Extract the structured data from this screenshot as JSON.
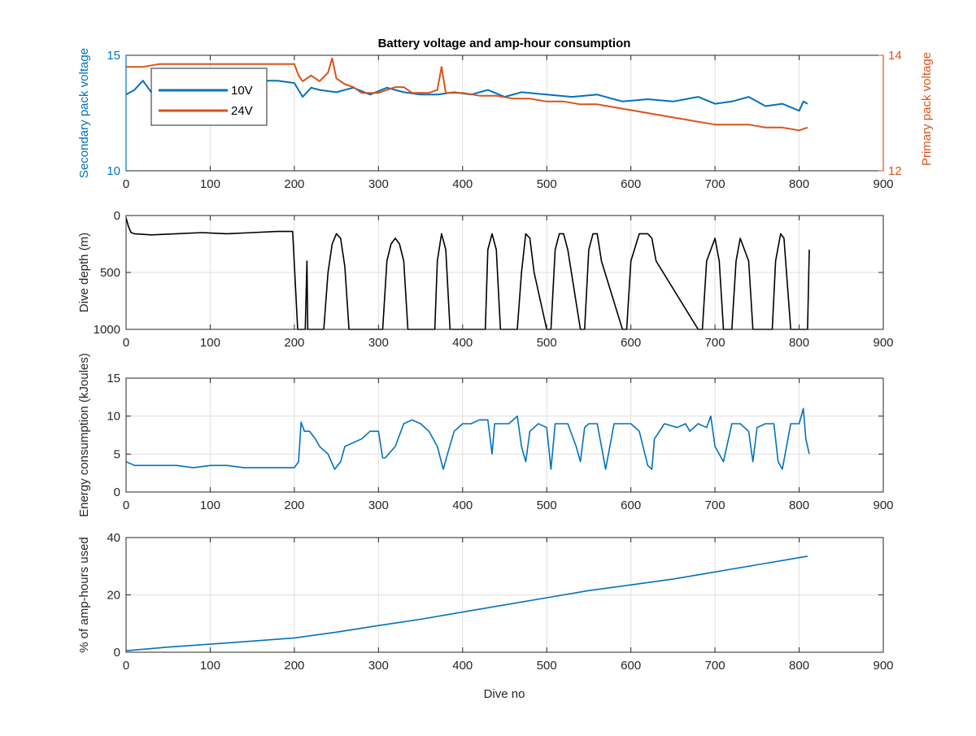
{
  "figure": {
    "title": "Battery voltage and amp-hour consumption",
    "xlabel": "Dive no"
  },
  "colors": {
    "blue": "#0072BD",
    "orange": "#D95319",
    "black": "#000000",
    "grid": "#e0e0e0",
    "axis": "#262626"
  },
  "chart_data": [
    {
      "type": "line",
      "title": "Battery voltage and amp-hour consumption",
      "xlabel": "",
      "ylabel_left": "Secondary pack voltage",
      "ylabel_right": "Primary pack voltage",
      "xlim": [
        0,
        900
      ],
      "xticks": [
        0,
        100,
        200,
        300,
        400,
        500,
        600,
        700,
        800,
        900
      ],
      "ylim_left": [
        10,
        15
      ],
      "yticks_left": [
        10,
        15
      ],
      "ylim_right": [
        12,
        14
      ],
      "yticks_right": [
        12,
        14
      ],
      "grid": true,
      "legend": {
        "position": "top-left",
        "entries": [
          "10V",
          "24V"
        ]
      },
      "series": [
        {
          "name": "10V",
          "axis": "left",
          "color": "#0072BD",
          "x": [
            0,
            10,
            20,
            30,
            40,
            60,
            80,
            100,
            120,
            140,
            160,
            180,
            200,
            205,
            210,
            220,
            230,
            250,
            270,
            290,
            310,
            330,
            350,
            370,
            390,
            410,
            430,
            450,
            470,
            500,
            530,
            560,
            590,
            620,
            650,
            680,
            700,
            720,
            740,
            760,
            780,
            800,
            805,
            810
          ],
          "y": [
            13.3,
            13.5,
            13.9,
            13.4,
            13.9,
            13.8,
            13.9,
            13.8,
            13.9,
            13.9,
            13.9,
            13.9,
            13.8,
            13.5,
            13.2,
            13.6,
            13.5,
            13.4,
            13.6,
            13.3,
            13.6,
            13.4,
            13.3,
            13.3,
            13.4,
            13.3,
            13.5,
            13.2,
            13.4,
            13.3,
            13.2,
            13.3,
            13.0,
            13.1,
            13.0,
            13.2,
            12.9,
            13.0,
            13.2,
            12.8,
            12.9,
            12.6,
            13.0,
            12.9
          ]
        },
        {
          "name": "24V",
          "axis": "right",
          "color": "#D95319",
          "x": [
            0,
            20,
            40,
            60,
            80,
            100,
            120,
            140,
            160,
            180,
            200,
            205,
            210,
            220,
            230,
            240,
            245,
            250,
            260,
            270,
            280,
            300,
            320,
            330,
            340,
            360,
            370,
            375,
            380,
            400,
            420,
            440,
            460,
            480,
            500,
            520,
            540,
            560,
            580,
            600,
            620,
            640,
            660,
            680,
            700,
            720,
            740,
            760,
            780,
            800,
            810
          ],
          "y": [
            13.8,
            13.8,
            13.85,
            13.85,
            13.85,
            13.85,
            13.85,
            13.85,
            13.85,
            13.85,
            13.85,
            13.65,
            13.55,
            13.65,
            13.55,
            13.7,
            13.95,
            13.6,
            13.5,
            13.45,
            13.35,
            13.35,
            13.45,
            13.45,
            13.35,
            13.35,
            13.4,
            13.8,
            13.35,
            13.35,
            13.3,
            13.3,
            13.25,
            13.25,
            13.2,
            13.2,
            13.15,
            13.15,
            13.1,
            13.05,
            13.0,
            12.95,
            12.9,
            12.85,
            12.8,
            12.8,
            12.8,
            12.75,
            12.75,
            12.7,
            12.75
          ]
        }
      ]
    },
    {
      "type": "line",
      "ylabel": "Dive depth (m)",
      "xlim": [
        0,
        900
      ],
      "xticks": [
        0,
        100,
        200,
        300,
        400,
        500,
        600,
        700,
        800,
        900
      ],
      "ylim": [
        0,
        1000
      ],
      "yticks": [
        0,
        500,
        1000
      ],
      "yreversed": true,
      "grid": true,
      "series": [
        {
          "color": "#000000",
          "x": [
            0,
            3,
            6,
            10,
            30,
            60,
            90,
            120,
            150,
            180,
            198,
            204,
            207,
            210,
            213,
            215,
            216,
            218,
            228,
            235,
            240,
            245,
            250,
            255,
            260,
            265,
            270,
            300,
            305,
            310,
            315,
            320,
            325,
            330,
            335,
            340,
            360,
            367,
            370,
            375,
            380,
            385,
            390,
            420,
            427,
            430,
            435,
            440,
            445,
            460,
            465,
            470,
            475,
            480,
            485,
            500,
            505,
            510,
            515,
            520,
            525,
            540,
            545,
            550,
            555,
            560,
            565,
            590,
            595,
            600,
            610,
            620,
            625,
            630,
            680,
            685,
            690,
            700,
            705,
            710,
            720,
            725,
            730,
            740,
            745,
            750,
            765,
            768,
            772,
            778,
            782,
            785,
            790,
            808,
            810,
            812
          ],
          "y": [
            20,
            100,
            150,
            160,
            170,
            160,
            150,
            160,
            150,
            140,
            140,
            1000,
            1000,
            1000,
            1000,
            400,
            1000,
            1000,
            1000,
            1000,
            500,
            250,
            160,
            200,
            450,
            1000,
            1000,
            1000,
            1000,
            400,
            250,
            200,
            250,
            400,
            1000,
            1000,
            1000,
            1000,
            400,
            160,
            300,
            1000,
            1000,
            1000,
            1000,
            300,
            160,
            300,
            1000,
            1000,
            1000,
            500,
            160,
            200,
            500,
            1000,
            1000,
            300,
            160,
            160,
            300,
            1000,
            1000,
            300,
            160,
            160,
            400,
            1000,
            1000,
            400,
            160,
            160,
            200,
            400,
            1000,
            1000,
            400,
            200,
            400,
            1000,
            1000,
            400,
            200,
            400,
            1000,
            1000,
            1000,
            1000,
            400,
            160,
            200,
            500,
            1000,
            1000,
            1000,
            300
          ]
        }
      ]
    },
    {
      "type": "line",
      "ylabel": "Energy consumption (kJoules)",
      "xlim": [
        0,
        900
      ],
      "xticks": [
        0,
        100,
        200,
        300,
        400,
        500,
        600,
        700,
        800,
        900
      ],
      "ylim": [
        0,
        15
      ],
      "yticks": [
        0,
        5,
        10,
        15
      ],
      "grid": true,
      "series": [
        {
          "color": "#0072BD",
          "x": [
            0,
            10,
            20,
            40,
            60,
            80,
            100,
            120,
            140,
            160,
            180,
            200,
            205,
            208,
            212,
            218,
            225,
            230,
            240,
            248,
            255,
            260,
            270,
            280,
            290,
            300,
            305,
            308,
            312,
            320,
            330,
            340,
            350,
            360,
            370,
            377,
            382,
            390,
            400,
            410,
            420,
            430,
            435,
            438,
            445,
            455,
            465,
            470,
            475,
            480,
            490,
            500,
            505,
            510,
            515,
            525,
            535,
            540,
            545,
            550,
            560,
            565,
            570,
            580,
            590,
            600,
            610,
            620,
            625,
            628,
            640,
            655,
            665,
            670,
            680,
            690,
            695,
            700,
            710,
            720,
            730,
            740,
            745,
            750,
            760,
            770,
            775,
            780,
            790,
            800,
            805,
            808,
            812
          ],
          "y": [
            4,
            3.5,
            3.5,
            3.5,
            3.5,
            3.2,
            3.5,
            3.5,
            3.2,
            3.2,
            3.2,
            3.2,
            4,
            9.2,
            8,
            8,
            7,
            6,
            5,
            3,
            4,
            6,
            6.5,
            7,
            8,
            8,
            4.5,
            4.5,
            5,
            6,
            9,
            9.5,
            9,
            8,
            6,
            3,
            5,
            8,
            9,
            9,
            9.5,
            9.5,
            5,
            9,
            9,
            9,
            10,
            6,
            4,
            8,
            9,
            8.5,
            3,
            9,
            9,
            9,
            6,
            4,
            8.5,
            9,
            9,
            6,
            3,
            9,
            9,
            9,
            8,
            3.5,
            3,
            7,
            9,
            8.5,
            9,
            8,
            9,
            8.5,
            10,
            6,
            4,
            9,
            9,
            8,
            4,
            8.5,
            9,
            9,
            4,
            3,
            9,
            9,
            11,
            7,
            5
          ]
        }
      ]
    },
    {
      "type": "line",
      "xlabel": "Dive no",
      "ylabel": "% of amp-hours used",
      "xlim": [
        0,
        900
      ],
      "xticks": [
        0,
        100,
        200,
        300,
        400,
        500,
        600,
        700,
        800,
        900
      ],
      "ylim": [
        0,
        40
      ],
      "yticks": [
        0,
        20,
        40
      ],
      "grid": true,
      "series": [
        {
          "color": "#0072BD",
          "x": [
            0,
            50,
            100,
            150,
            200,
            250,
            300,
            350,
            400,
            450,
            500,
            550,
            600,
            650,
            700,
            750,
            810
          ],
          "y": [
            0.5,
            1.8,
            2.8,
            3.9,
            5.0,
            7.0,
            9.3,
            11.5,
            14.0,
            16.5,
            19.0,
            21.5,
            23.5,
            25.5,
            28.0,
            30.5,
            33.5
          ]
        }
      ]
    }
  ]
}
